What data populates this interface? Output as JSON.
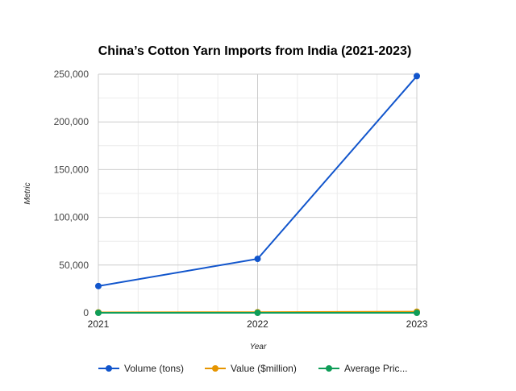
{
  "chart_data": {
    "type": "line",
    "title": "China’s Cotton Yarn Imports from India (2021-2023)",
    "xlabel": "Year",
    "ylabel": "Metric",
    "categories": [
      "2021",
      "2022",
      "2023"
    ],
    "ylim": [
      0,
      250000
    ],
    "yticks": [
      0,
      50000,
      100000,
      150000,
      200000,
      250000
    ],
    "ytick_labels": [
      "0",
      "50,000",
      "100,000",
      "150,000",
      "200,000",
      "250,000"
    ],
    "grid": true,
    "legend_position": "bottom",
    "series": [
      {
        "name": "Volume (tons)",
        "values": [
          28000,
          56500,
          248000
        ],
        "color": "#1155cc"
      },
      {
        "name": "Value ($million)",
        "values": [
          450,
          650,
          1200
        ],
        "color": "#e69500"
      },
      {
        "name": "Average Pric...",
        "values": [
          3.5,
          3.6,
          3.2
        ],
        "color": "#0f9d58"
      }
    ]
  }
}
